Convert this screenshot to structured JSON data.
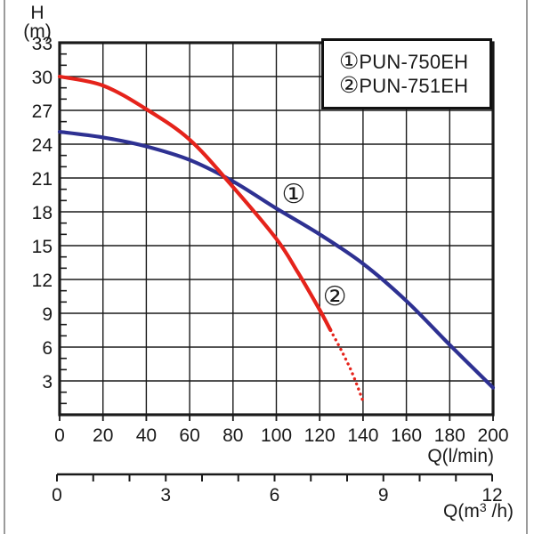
{
  "y_axis_title": {
    "line1": "H",
    "line2": "(m)"
  },
  "axes": {
    "primary_x_unit": "Q(l/min)",
    "secondary_x_unit_pre": "Q(m",
    "secondary_x_unit_sup": "3",
    "secondary_x_unit_post": " /h)"
  },
  "legend": {
    "entries": [
      {
        "symbol": "①",
        "label": "PUN-750EH"
      },
      {
        "symbol": "②",
        "label": "PUN-751EH"
      }
    ]
  },
  "colors": {
    "curve1_blue": "#2e3192",
    "curve2_red": "#e5231b",
    "grid": "#1a1a1a",
    "text": "#1a1a1a",
    "frame_gray": "#9b9b9b"
  },
  "chart_data": {
    "type": "line",
    "title": "",
    "xlabel": "Q(l/min)",
    "xlabel_secondary": "Q(m³/h)",
    "ylabel": "H (m)",
    "xlim_lmin": [
      0,
      200
    ],
    "ylim_m": [
      0,
      33
    ],
    "x_primary_ticks": [
      0,
      20,
      40,
      60,
      80,
      100,
      120,
      140,
      160,
      180,
      200
    ],
    "y_ticks": [
      3,
      6,
      9,
      12,
      15,
      18,
      21,
      24,
      27,
      30,
      33
    ],
    "y_minor_tick_step": 1,
    "x_secondary_ticks": [
      0,
      1,
      2,
      3,
      4,
      5,
      6,
      7,
      8,
      9,
      10,
      11,
      12
    ],
    "x_secondary_labeled_ticks": [
      0,
      3,
      6,
      9,
      12
    ],
    "grid": "on",
    "legend_position": "top-right",
    "series": [
      {
        "name": "PUN-750EH",
        "marker": "①",
        "color": "#2e3192",
        "style": "solid",
        "points_q_lmin_h_m": [
          [
            0,
            25.1
          ],
          [
            20,
            24.6
          ],
          [
            40,
            23.8
          ],
          [
            60,
            22.6
          ],
          [
            80,
            20.7
          ],
          [
            100,
            18.3
          ],
          [
            120,
            16.0
          ],
          [
            140,
            13.4
          ],
          [
            160,
            10.1
          ],
          [
            180,
            6.2
          ],
          [
            200,
            2.4
          ]
        ]
      },
      {
        "name": "PUN-751EH",
        "marker": "②",
        "color": "#e5231b",
        "style": "solid-with-dotted-tail",
        "points_q_lmin_h_m": [
          [
            0,
            30.0
          ],
          [
            20,
            29.2
          ],
          [
            40,
            27.1
          ],
          [
            60,
            24.4
          ],
          [
            80,
            20.2
          ],
          [
            100,
            15.6
          ],
          [
            110,
            12.6
          ],
          [
            120,
            9.3
          ],
          [
            125,
            7.5
          ]
        ],
        "dotted_tail_q_lmin_h_m": [
          [
            125,
            7.5
          ],
          [
            130,
            5.7
          ],
          [
            135,
            3.7
          ],
          [
            140,
            1.2
          ]
        ]
      }
    ],
    "curve_annotations": [
      {
        "symbol": "①",
        "q_lmin": 108,
        "h_m": 19.5
      },
      {
        "symbol": "②",
        "q_lmin": 127,
        "h_m": 10.4
      }
    ]
  }
}
